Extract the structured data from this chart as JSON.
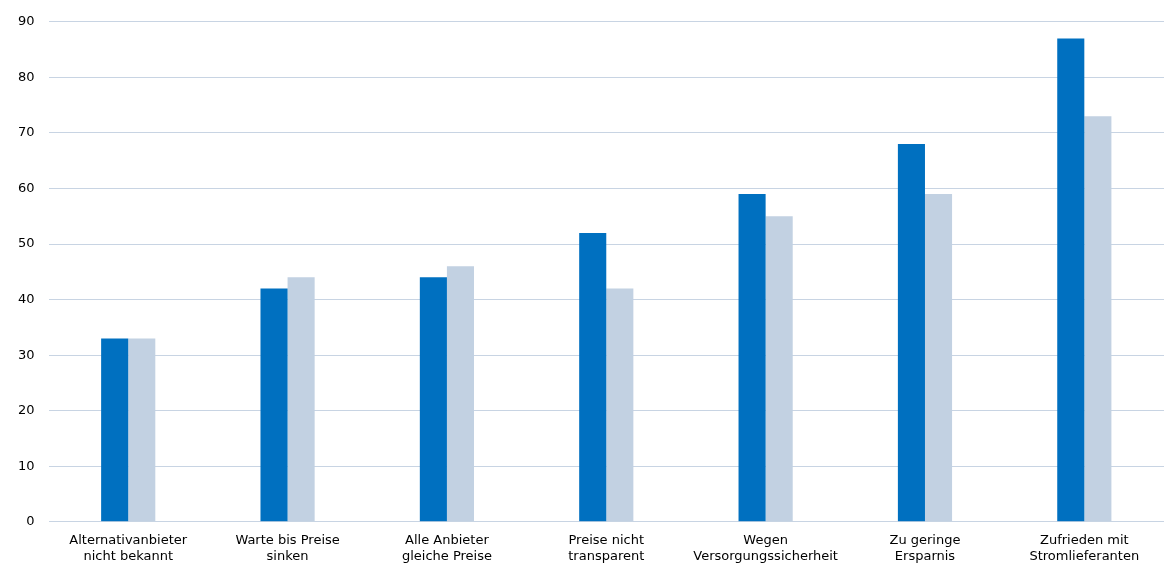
{
  "chart_data": {
    "type": "bar",
    "categories": [
      "Alternativanbieter\nnicht bekannt",
      "Warte bis Preise\nsinken",
      "Alle Anbieter\ngleiche Preise",
      "Preise nicht\ntransparent",
      "Wegen\nVersorgungssicherheit",
      "Zu geringe\nErsparnis",
      "Zufrieden mit\nStromlieferanten"
    ],
    "series": [
      {
        "color": "#0070c0",
        "values": [
          33,
          42,
          44,
          52,
          59,
          68,
          87
        ]
      },
      {
        "color": "#c2d1e2",
        "values": [
          33,
          44,
          46,
          42,
          55,
          59,
          73
        ]
      }
    ],
    "ylim": [
      0,
      90
    ],
    "yticks": [
      0,
      10,
      20,
      30,
      40,
      50,
      60,
      70,
      80,
      90
    ],
    "grid": "y",
    "legend": false
  }
}
